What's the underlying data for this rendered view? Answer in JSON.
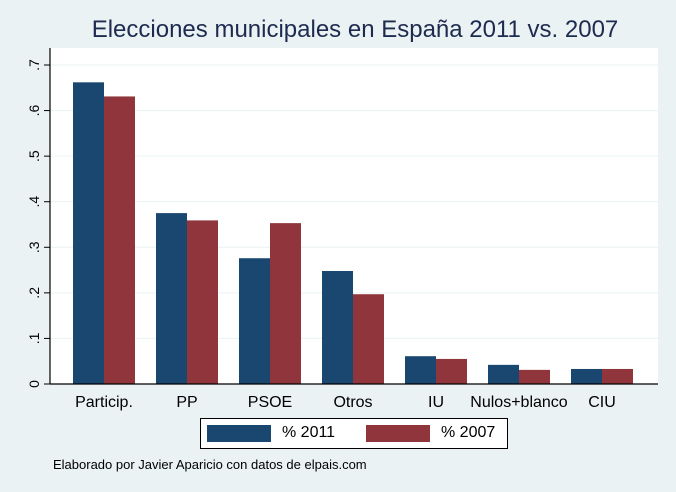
{
  "chart_data": {
    "type": "bar",
    "title": "Elecciones municipales en España 2011 vs. 2007",
    "xlabel": "",
    "ylabel": "",
    "categories": [
      "Particip.",
      "PP",
      "PSOE",
      "Otros",
      "IU",
      "Nulos+blanco",
      "CIU"
    ],
    "series": [
      {
        "name": "% 2011",
        "color": "#1a476f",
        "values": [
          0.662,
          0.375,
          0.276,
          0.248,
          0.061,
          0.042,
          0.033
        ]
      },
      {
        "name": "% 2007",
        "color": "#90353b",
        "values": [
          0.631,
          0.359,
          0.353,
          0.197,
          0.055,
          0.031,
          0.033
        ]
      }
    ],
    "ylim": [
      0,
      0.7
    ],
    "yticks": [
      0,
      0.1,
      0.2,
      0.3,
      0.4,
      0.5,
      0.6,
      0.7
    ],
    "ytick_labels": [
      "0",
      ".1",
      ".2",
      ".3",
      ".4",
      ".5",
      ".6",
      ".7"
    ],
    "grid": true,
    "legend_position": "bottom",
    "note": "Elaborado por Javier Aparicio con datos de elpais.com"
  }
}
